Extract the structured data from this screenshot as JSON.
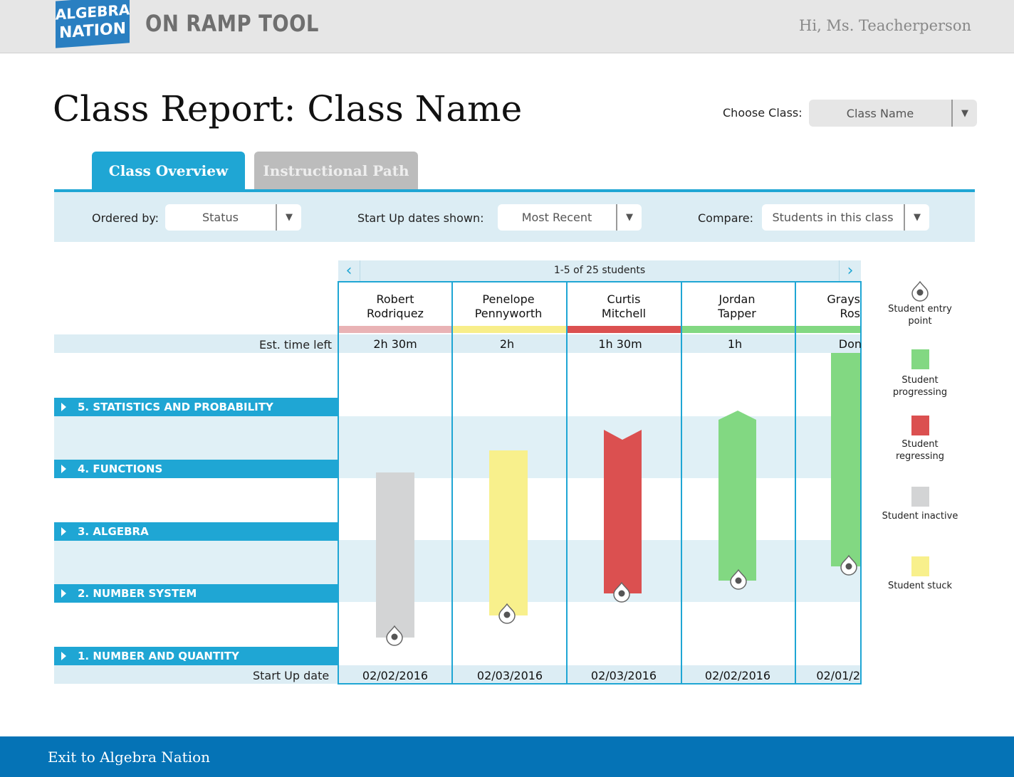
{
  "header": {
    "logo_line1": "ALGEBRA",
    "logo_line2": "NATION",
    "app_title": "ON RAMP TOOL",
    "greeting": "Hi, Ms. Teacherperson"
  },
  "page_title": "Class Report: Class Name",
  "choose_class": {
    "label": "Choose Class:",
    "value": "Class Name"
  },
  "tabs": [
    {
      "label": "Class Overview",
      "active": true
    },
    {
      "label": "Instructional Path",
      "active": false
    }
  ],
  "filters": {
    "ordered_by": {
      "label": "Ordered by:",
      "value": "Status"
    },
    "dates_shown": {
      "label": "Start Up dates shown:",
      "value": "Most Recent"
    },
    "compare": {
      "label": "Compare:",
      "value": "Students in this class"
    }
  },
  "pager": {
    "text": "1-5 of 25 students",
    "prev": "‹",
    "next": "›"
  },
  "row_labels": {
    "est_time": "Est. time left",
    "start_up": "Start Up date"
  },
  "categories": [
    "5. STATISTICS AND PROBABILITY",
    "4. FUNCTIONS",
    "3. ALGEBRA",
    "2. NUMBER SYSTEM",
    "1. NUMBER AND QUANTITY"
  ],
  "students": [
    {
      "first": "Robert",
      "last": "Rodriquez",
      "time_left": "2h 30m",
      "start_date": "02/02/2016",
      "status": "inactive"
    },
    {
      "first": "Penelope",
      "last": "Pennyworth",
      "time_left": "2h",
      "start_date": "02/03/2016",
      "status": "stuck"
    },
    {
      "first": "Curtis",
      "last": "Mitchell",
      "time_left": "1h 30m",
      "start_date": "02/03/2016",
      "status": "regressing"
    },
    {
      "first": "Jordan",
      "last": "Tapper",
      "time_left": "1h",
      "start_date": "02/02/2016",
      "status": "progressing"
    },
    {
      "first": "Grays",
      "last": "Ros",
      "time_left": "Don",
      "start_date": "02/01/2",
      "status": "progressing"
    }
  ],
  "legend": [
    {
      "label": "Student entry point",
      "icon": "entry-point-icon"
    },
    {
      "label": "Student progressing",
      "color": "#82d882"
    },
    {
      "label": "Student regressing",
      "color": "#db5050"
    },
    {
      "label": "Student inactive",
      "color": "#d3d4d5"
    },
    {
      "label": "Student stuck",
      "color": "#f8f08c"
    }
  ],
  "colors": {
    "accent": "#1fa6d4",
    "footer": "#0573b6",
    "inactive": "#d3d4d5",
    "stuck": "#f8f08c",
    "regressing": "#db5050",
    "progressing": "#82d882",
    "inactive_status": "#e9b3b5",
    "stuck_status": "#f8ee8a",
    "regressing_status": "#db5050",
    "progressing_status": "#82d882"
  },
  "footer": {
    "exit": "Exit to Algebra Nation"
  }
}
